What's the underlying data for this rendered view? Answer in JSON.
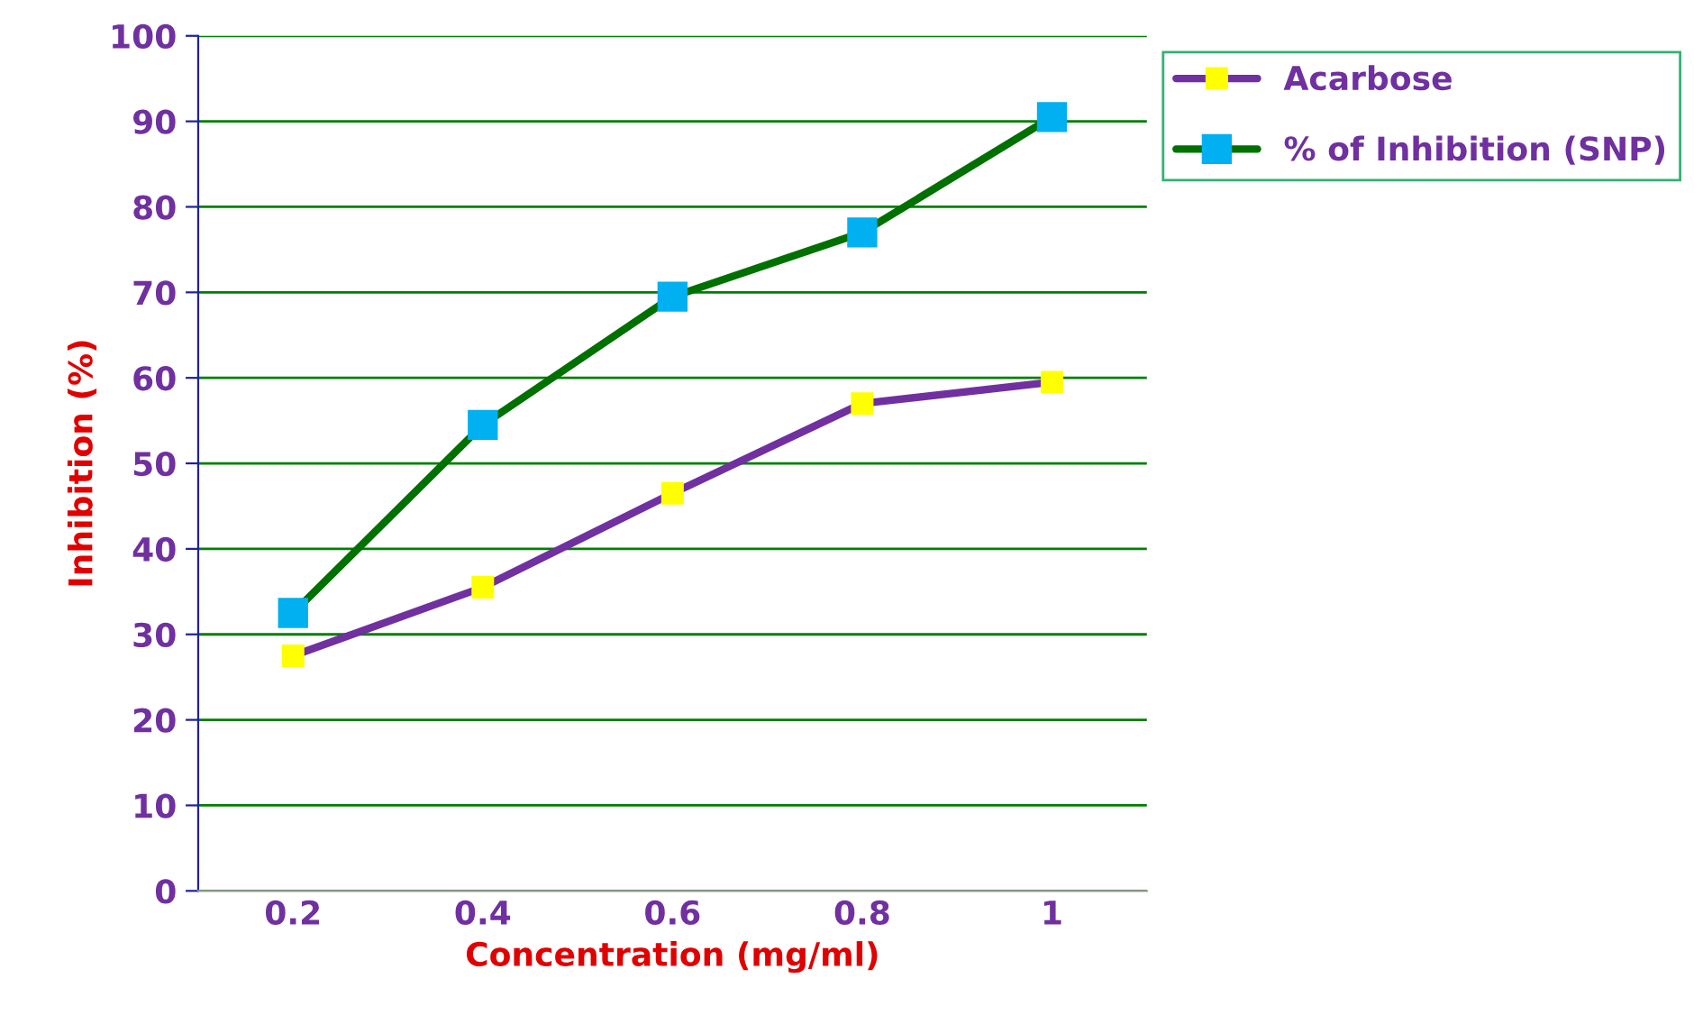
{
  "chart_data": {
    "type": "line",
    "xlabel": "Concentration (mg/ml)",
    "ylabel": "Inhibition (%)",
    "categories": [
      "0.2",
      "0.4",
      "0.6",
      "0.8",
      "1"
    ],
    "series": [
      {
        "name": "Acarbose",
        "color": "#7030a0",
        "values": [
          27.5,
          35.5,
          46.5,
          57,
          59.5
        ]
      },
      {
        "name": "% of Inhibition (SNP)",
        "color": "#007000",
        "values": [
          32.5,
          54.5,
          69.5,
          77,
          90.5
        ]
      }
    ],
    "ylim": [
      0,
      100
    ],
    "yticks": [
      0,
      10,
      20,
      30,
      40,
      50,
      60,
      70,
      80,
      90,
      100
    ],
    "grid": "y",
    "legend": "top right",
    "marker": "square",
    "line_style": "solid"
  }
}
